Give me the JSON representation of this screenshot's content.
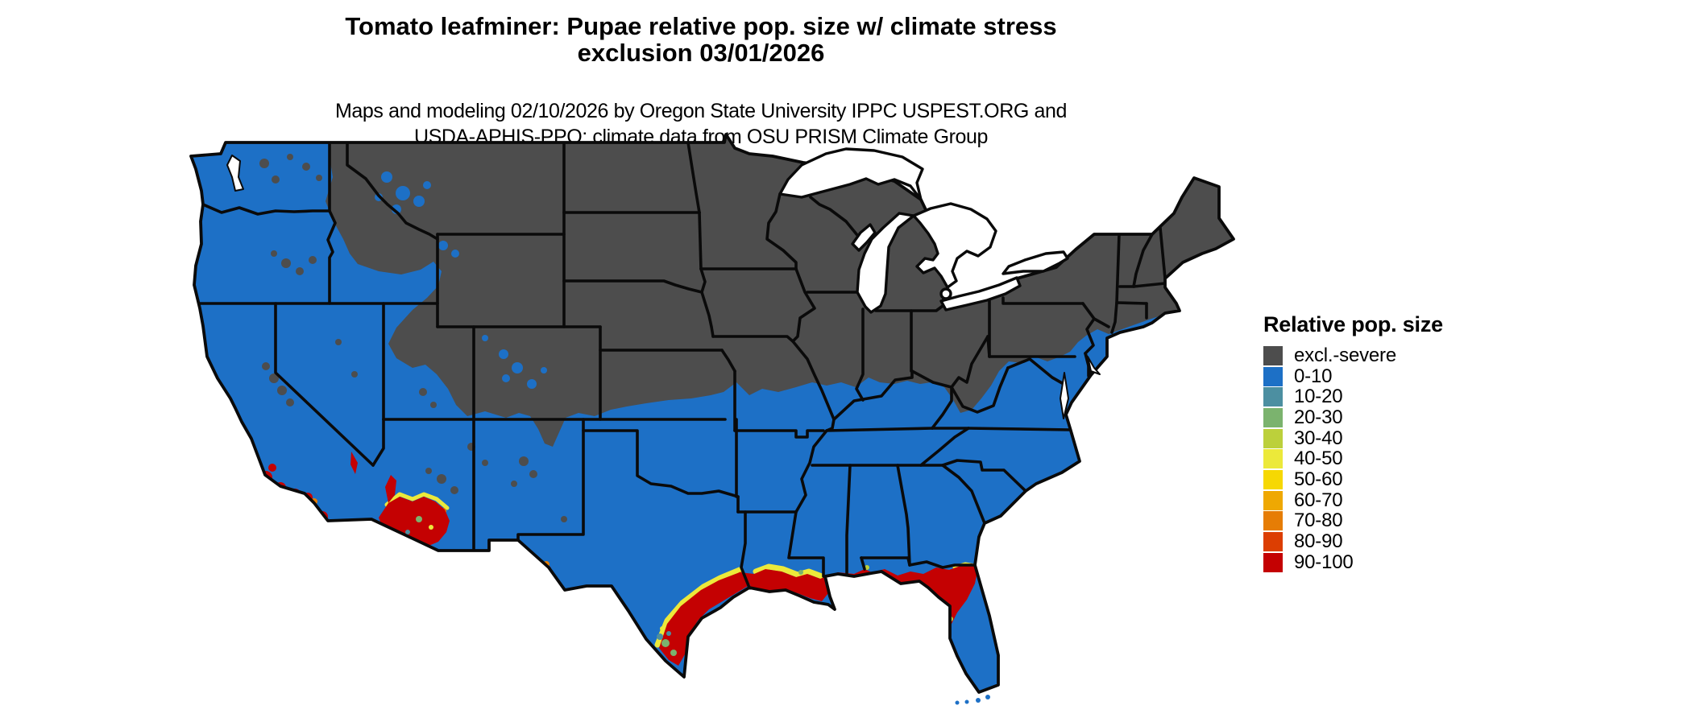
{
  "title": {
    "line1": "Tomato leafminer: Pupae relative pop. size w/ climate stress",
    "line2": "exclusion 03/01/2026"
  },
  "subtitle": {
    "line1": "Maps and modeling 02/10/2026 by Oregon State University IPPC USPEST.ORG and",
    "line2": "USDA-APHIS-PPQ; climate data from OSU PRISM Climate Group"
  },
  "legend": {
    "title": "Relative pop. size",
    "items": [
      {
        "label": "excl.-severe",
        "color": "#4d4d4d"
      },
      {
        "label": "0-10",
        "color": "#1d70c6"
      },
      {
        "label": "10-20",
        "color": "#4c8fa1"
      },
      {
        "label": "20-30",
        "color": "#7bb36e"
      },
      {
        "label": "30-40",
        "color": "#bcd03b"
      },
      {
        "label": "40-50",
        "color": "#ece93a"
      },
      {
        "label": "50-60",
        "color": "#f6d803"
      },
      {
        "label": "60-70",
        "color": "#efa802"
      },
      {
        "label": "70-80",
        "color": "#e67d05"
      },
      {
        "label": "80-90",
        "color": "#dc3e02"
      },
      {
        "label": "90-100",
        "color": "#c40102"
      }
    ]
  },
  "map": {
    "line_color": "#0a0a0a",
    "background": "#ffffff"
  }
}
